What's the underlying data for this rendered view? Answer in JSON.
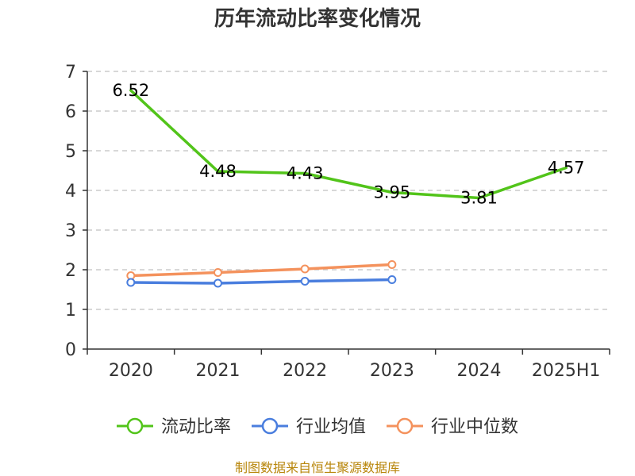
{
  "chart_data": {
    "type": "line",
    "title": "历年流动比率变化情况",
    "categories": [
      "2020",
      "2021",
      "2022",
      "2023",
      "2024",
      "2025H1"
    ],
    "ylim": [
      0,
      7
    ],
    "yticks": [
      "0",
      "1",
      "2",
      "3",
      "4",
      "5",
      "6",
      "7"
    ],
    "grid": true,
    "legend_position": "bottom",
    "series": [
      {
        "name": "流动比率",
        "color": "#52c41a",
        "values": [
          6.52,
          4.48,
          4.43,
          3.95,
          3.81,
          4.57
        ],
        "labels": [
          "6.52",
          "4.48",
          "4.43",
          "3.95",
          "3.81",
          "4.57"
        ],
        "show_labels": true,
        "marker": "none"
      },
      {
        "name": "行业均值",
        "color": "#4a7ede",
        "values": [
          1.68,
          1.66,
          1.71,
          1.75,
          null,
          null
        ],
        "show_labels": false,
        "marker": "hollow-circle"
      },
      {
        "name": "行业中位数",
        "color": "#f4925d",
        "values": [
          1.85,
          1.93,
          2.02,
          2.13,
          null,
          null
        ],
        "show_labels": false,
        "marker": "hollow-circle"
      }
    ],
    "source": "制图数据来自恒生聚源数据库"
  }
}
